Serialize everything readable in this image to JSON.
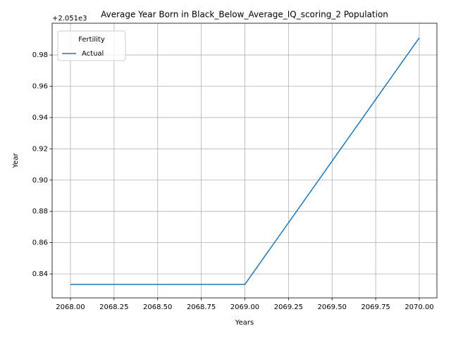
{
  "chart_data": {
    "type": "line",
    "title": "Average Year Born in Black_Below_Average_IQ_scoring_2 Population",
    "x_label": "Years",
    "y_label": "Year",
    "y_offset_text": "+2.051e3",
    "legend_title": "Fertility",
    "legend_loc": "upper left",
    "grid": true,
    "x": [
      2068,
      2069,
      2070
    ],
    "series": [
      {
        "name": "Actual",
        "color": "#1f77b4",
        "values": [
          0.8333,
          0.8333,
          0.991
        ]
      }
    ],
    "xlim": [
      2067.895,
      2070.101
    ],
    "xticks": [
      {
        "value": 2068,
        "label": "2068.00"
      },
      {
        "value": 2068.25,
        "label": "2068.25"
      },
      {
        "value": 2068.5,
        "label": "2068.50"
      },
      {
        "value": 2068.75,
        "label": "2068.75"
      },
      {
        "value": 2069,
        "label": "2069.00"
      },
      {
        "value": 2069.25,
        "label": "2069.25"
      },
      {
        "value": 2069.5,
        "label": "2069.50"
      },
      {
        "value": 2069.75,
        "label": "2069.75"
      },
      {
        "value": 2070,
        "label": "2070.00"
      }
    ],
    "ylim": [
      0.8247,
      1.0003
    ],
    "yticks": [
      0.84,
      0.86,
      0.88,
      {
        "value": 0.9,
        "label": "0.90"
      },
      0.92,
      0.94,
      0.96,
      0.98
    ]
  }
}
